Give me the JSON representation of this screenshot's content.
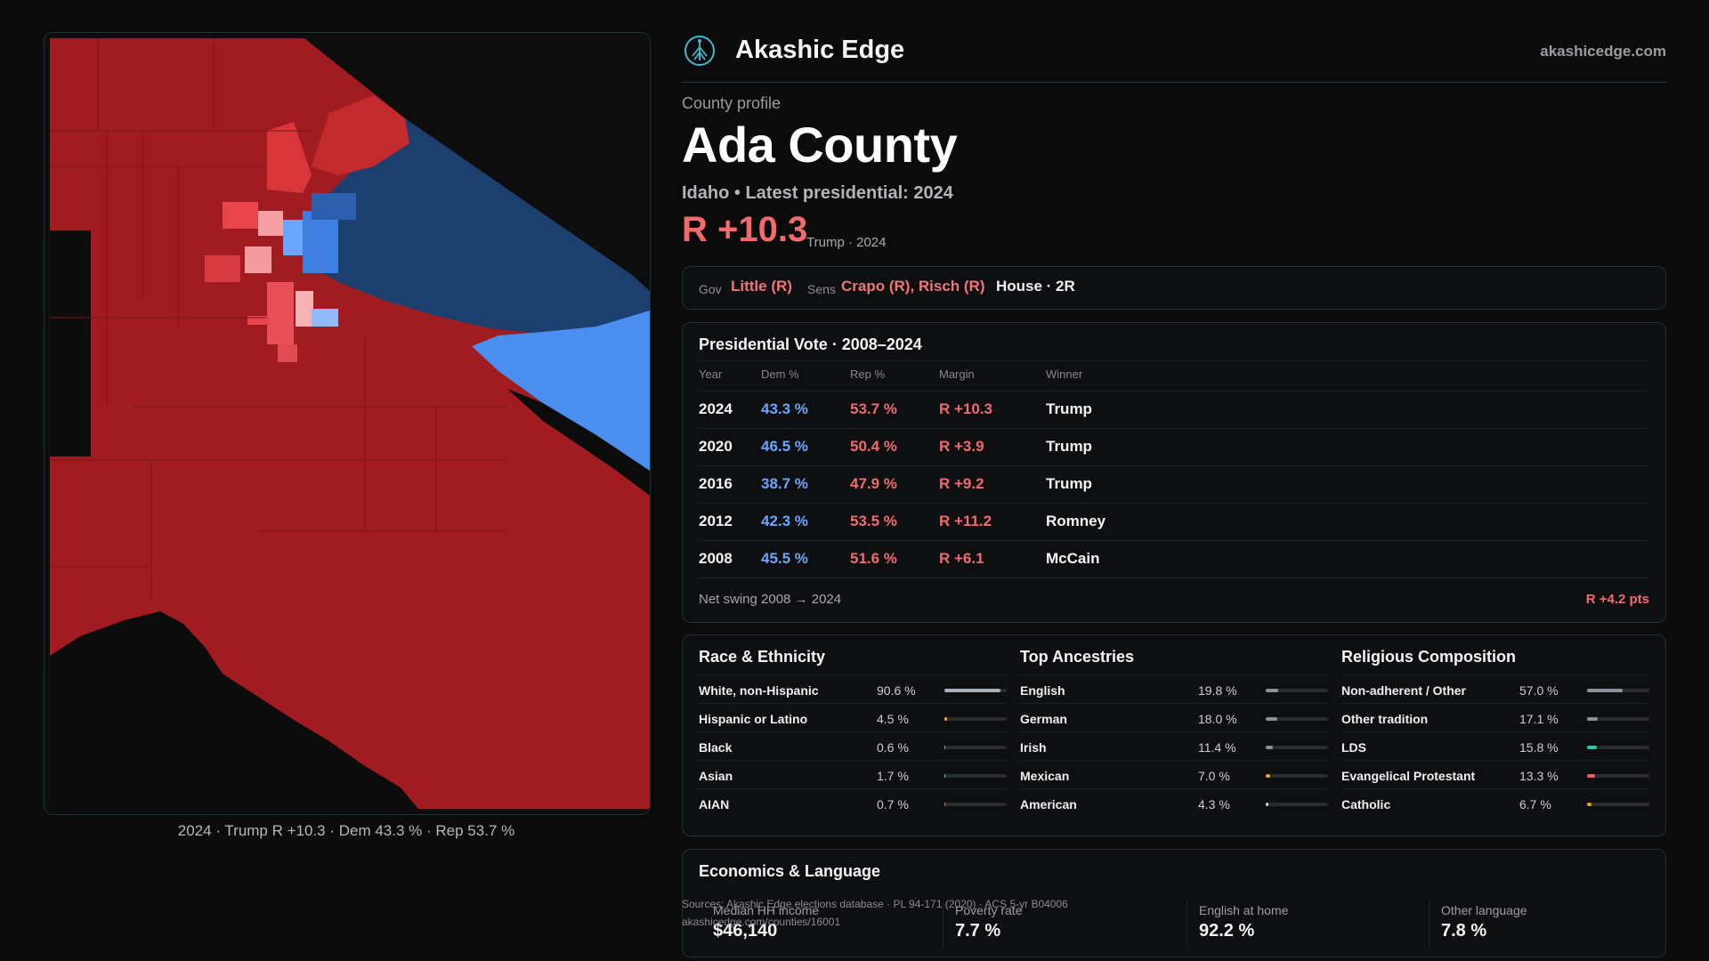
{
  "map": {
    "caption": "2024 · Trump R +10.3 · Dem 43.3 % · Rep 53.7 %"
  },
  "header": {
    "brand": "Akashic Edge",
    "site": "akashicedge.com",
    "logo_icon": "tree-network-logo-icon"
  },
  "profile": {
    "eyebrow": "County profile",
    "title": "Ada County",
    "subtitle": "Idaho • Latest presidential: 2024",
    "margin": "R +10.3",
    "margin_note": "Trump · 2024"
  },
  "officials": {
    "gov_label": "Gov",
    "gov_value": "Little (R)",
    "sens_label": "Sens",
    "sens_value": "Crapo (R), Risch (R)",
    "house": "House · 2R"
  },
  "presidential": {
    "title": "Presidential Vote · 2008–2024",
    "headers": [
      "Year",
      "Dem %",
      "Rep %",
      "Margin",
      "Winner"
    ],
    "rows": [
      {
        "year": "2024",
        "dem": "43.3 %",
        "rep": "53.7 %",
        "margin": "R +10.3",
        "winner": "Trump"
      },
      {
        "year": "2020",
        "dem": "46.5 %",
        "rep": "50.4 %",
        "margin": "R +3.9",
        "winner": "Trump"
      },
      {
        "year": "2016",
        "dem": "38.7 %",
        "rep": "47.9 %",
        "margin": "R +9.2",
        "winner": "Trump"
      },
      {
        "year": "2012",
        "dem": "42.3 %",
        "rep": "53.5 %",
        "margin": "R +11.2",
        "winner": "Romney"
      },
      {
        "year": "2008",
        "dem": "45.5 %",
        "rep": "51.6 %",
        "margin": "R +6.1",
        "winner": "McCain"
      }
    ],
    "swing_label": "Net swing 2008 → 2024",
    "swing_value": "R +4.2 pts"
  },
  "demographics": {
    "race": {
      "title": "Race & Ethnicity",
      "rows": [
        {
          "name": "White, non-Hispanic",
          "pct": "90.6 %",
          "value": 90.6,
          "color": "#a9b0bd"
        },
        {
          "name": "Hispanic or Latino",
          "pct": "4.5 %",
          "value": 4.5,
          "color": "#f0a030"
        },
        {
          "name": "Black",
          "pct": "0.6 %",
          "value": 0.6,
          "color": "#9aa0a8"
        },
        {
          "name": "Asian",
          "pct": "1.7 %",
          "value": 1.7,
          "color": "#3ecfa8"
        },
        {
          "name": "AIAN",
          "pct": "0.7 %",
          "value": 0.7,
          "color": "#e06a50"
        }
      ]
    },
    "ancestry": {
      "title": "Top Ancestries",
      "rows": [
        {
          "name": "English",
          "pct": "19.8 %",
          "value": 19.8,
          "color": "#8d929a"
        },
        {
          "name": "German",
          "pct": "18.0 %",
          "value": 18.0,
          "color": "#8d929a"
        },
        {
          "name": "Irish",
          "pct": "11.4 %",
          "value": 11.4,
          "color": "#8d929a"
        },
        {
          "name": "Mexican",
          "pct": "7.0 %",
          "value": 7.0,
          "color": "#f0a030"
        },
        {
          "name": "American",
          "pct": "4.3 %",
          "value": 4.3,
          "color": "#c8ccd2"
        }
      ]
    },
    "religion": {
      "title": "Religious Composition",
      "rows": [
        {
          "name": "Non-adherent / Other",
          "pct": "57.0 %",
          "value": 57.0,
          "color": "#8d929a"
        },
        {
          "name": "Other tradition",
          "pct": "17.1 %",
          "value": 17.1,
          "color": "#8d929a"
        },
        {
          "name": "LDS",
          "pct": "15.8 %",
          "value": 15.8,
          "color": "#2ec4b0"
        },
        {
          "name": "Evangelical Protestant",
          "pct": "13.3 %",
          "value": 13.3,
          "color": "#f25a64"
        },
        {
          "name": "Catholic",
          "pct": "6.7 %",
          "value": 6.7,
          "color": "#f0a030"
        }
      ]
    }
  },
  "economics": {
    "title": "Economics & Language",
    "items": [
      {
        "label": "Median HH income",
        "value": "$46,140"
      },
      {
        "label": "Poverty rate",
        "value": "7.7 %"
      },
      {
        "label": "English at home",
        "value": "92.2 %"
      },
      {
        "label": "Other language",
        "value": "7.8 %"
      }
    ]
  },
  "footer": {
    "sources": "Sources: Akashic Edge elections database · PL 94-171 (2020) · ACS 5-yr B04006",
    "url": "akashicedge.com/counties/16001"
  },
  "colors": {
    "rep": "#f26a6e",
    "dem": "#6aa5ff",
    "map_rep_dark": "#a11c20",
    "map_dem_dark": "#1d3f6e",
    "map_dem_light": "#4a8eef"
  }
}
